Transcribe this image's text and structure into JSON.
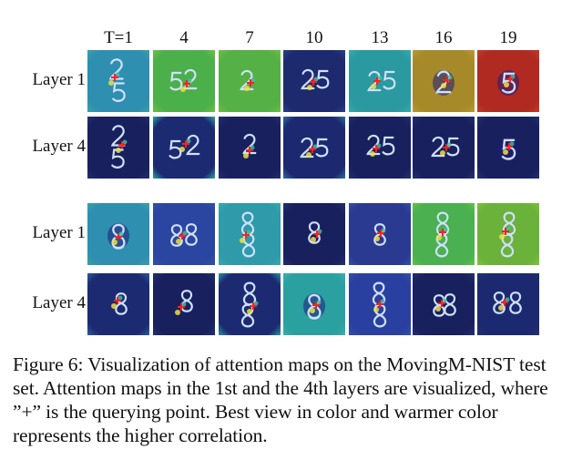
{
  "figure": {
    "columns": [
      "T=1",
      "4",
      "7",
      "10",
      "13",
      "16",
      "19"
    ],
    "groups": [
      {
        "digits": "25",
        "rows": [
          {
            "label": "Layer 1",
            "tiles": [
              {
                "bg": "#2e8fb0",
                "edge": "#3aa0a8",
                "digits": "2/5",
                "variant": "stack"
              },
              {
                "bg": "#4bb04a",
                "edge": "#6cc040",
                "digits": "52",
                "variant": "pair"
              },
              {
                "bg": "#55b045",
                "edge": "#6cc040",
                "digits": "2",
                "variant": "small"
              },
              {
                "bg": "#1e2a6e",
                "edge": "#2a3d8a",
                "digits": "25",
                "variant": "pair"
              },
              {
                "bg": "#2a9aa0",
                "edge": "#36aaa8",
                "digits": "25",
                "variant": "pair"
              },
              {
                "bg": "#a68a2a",
                "edge": "#b89a30",
                "digits": "25",
                "variant": "blob"
              },
              {
                "bg": "#b02a22",
                "edge": "#c43a28",
                "digits": "5",
                "variant": "blob"
              }
            ]
          },
          {
            "label": "Layer 4",
            "tiles": [
              {
                "bg": "#18205e",
                "edge": "#22306e",
                "digits": "2/5",
                "variant": "stack"
              },
              {
                "bg": "#1c2a72",
                "edge": "#2aa09a",
                "digits": "52",
                "variant": "pair"
              },
              {
                "bg": "#18205e",
                "edge": "#22306e",
                "digits": "2",
                "variant": "small"
              },
              {
                "bg": "#1c2870",
                "edge": "#2a6aa0",
                "digits": "25",
                "variant": "pair"
              },
              {
                "bg": "#18205e",
                "edge": "#22306e",
                "digits": "25",
                "variant": "pair"
              },
              {
                "bg": "#18205e",
                "edge": "#22306e",
                "digits": "25",
                "variant": "pair"
              },
              {
                "bg": "#18205e",
                "edge": "#22306e",
                "digits": "5",
                "variant": "blob"
              }
            ]
          }
        ]
      },
      {
        "digits": "8",
        "rows": [
          {
            "label": "Layer 1",
            "tiles": [
              {
                "bg": "#2e8fb0",
                "edge": "#3aa0a8",
                "digits": "8",
                "variant": "blob"
              },
              {
                "bg": "#2a46a0",
                "edge": "#3050a8",
                "digits": "8",
                "variant": "pair"
              },
              {
                "bg": "#2e9aaa",
                "edge": "#36aaa8",
                "digits": "8",
                "variant": "stack"
              },
              {
                "bg": "#18205e",
                "edge": "#22306e",
                "digits": "8",
                "variant": "small"
              },
              {
                "bg": "#2a3a90",
                "edge": "#3050a8",
                "digits": "8",
                "variant": "small"
              },
              {
                "bg": "#4ab050",
                "edge": "#60c048",
                "digits": "8",
                "variant": "stack"
              },
              {
                "bg": "#6ab23a",
                "edge": "#80c038",
                "digits": "8",
                "variant": "stack"
              }
            ]
          },
          {
            "label": "Layer 4",
            "tiles": [
              {
                "bg": "#1c2a72",
                "edge": "#2a5a9a",
                "digits": "8",
                "variant": "small"
              },
              {
                "bg": "#18205e",
                "edge": "#22306e",
                "digits": "8",
                "variant": "small"
              },
              {
                "bg": "#1c2a72",
                "edge": "#2a90a0",
                "digits": "8",
                "variant": "stack"
              },
              {
                "bg": "#2aa0a0",
                "edge": "#3ab0a8",
                "digits": "8",
                "variant": "blob"
              },
              {
                "bg": "#2a40a0",
                "edge": "#3050a8",
                "digits": "8",
                "variant": "stack"
              },
              {
                "bg": "#18205e",
                "edge": "#22306e",
                "digits": "8",
                "variant": "pair"
              },
              {
                "bg": "#1c2870",
                "edge": "#22306e",
                "digits": "8",
                "variant": "pair"
              }
            ]
          }
        ]
      }
    ]
  },
  "caption": "Figure 6: Visualization of attention maps on the MovingM-NIST test set. Attention maps in the 1st and the 4th layers are visualized, where ”+” is the querying point. Best view in color and warmer color represents the higher correlation."
}
